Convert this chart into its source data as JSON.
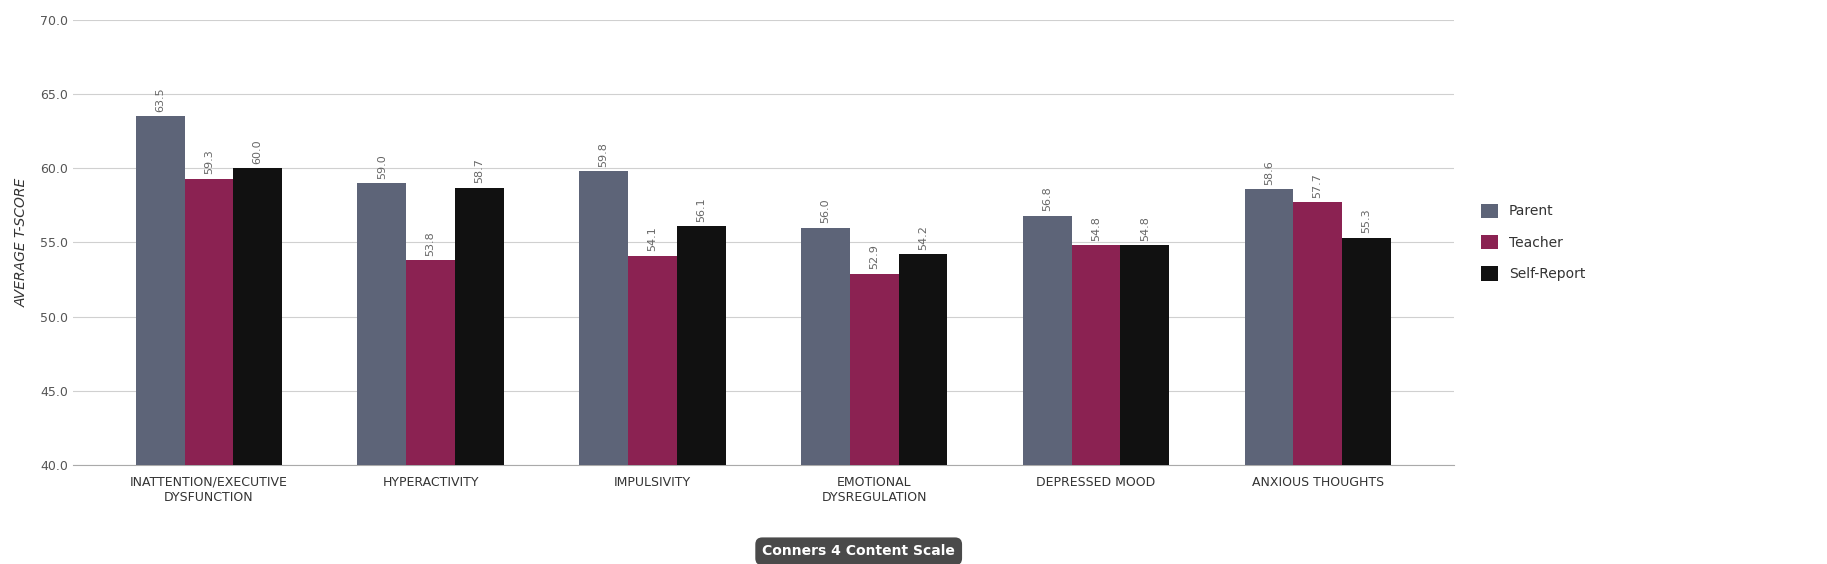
{
  "categories": [
    "INATTENTION/EXECUTIVE\nDYSFUNCTION",
    "HYPERACTIVITY",
    "IMPULSIVITY",
    "EMOTIONAL\nDYSREGULATION",
    "DEPRESSED MOOD",
    "ANXIOUS THOUGHTS"
  ],
  "parent": [
    63.5,
    59.0,
    59.8,
    56.0,
    56.8,
    58.6
  ],
  "teacher": [
    59.3,
    53.8,
    54.1,
    52.9,
    54.8,
    57.7
  ],
  "self_report": [
    60.0,
    58.7,
    56.1,
    54.2,
    54.8,
    55.3
  ],
  "parent_color": "#5d6478",
  "teacher_color": "#8b2252",
  "self_report_color": "#111111",
  "ylim": [
    40.0,
    70.0
  ],
  "yticks": [
    40.0,
    45.0,
    50.0,
    55.0,
    60.0,
    65.0,
    70.0
  ],
  "ylabel": "AVERAGE T-SCORE",
  "xlabel": "Conners 4 Content Scale",
  "bar_width": 0.22,
  "legend_labels": [
    "Parent",
    "Teacher",
    "Self-Report"
  ],
  "background_color": "#ffffff",
  "plot_bg_color": "#ffffff",
  "grid_color": "#d0d0d0",
  "label_fontsize": 8,
  "tick_fontsize": 9,
  "legend_fontsize": 10,
  "ylabel_fontsize": 10,
  "xlabel_box_color": "#4a4a4a",
  "xlabel_fontsize": 10
}
